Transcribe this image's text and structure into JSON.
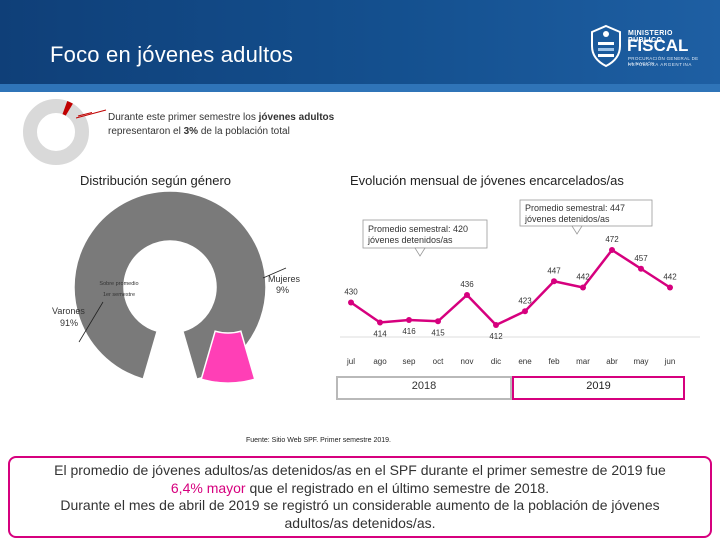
{
  "header": {
    "title": "Foco en jóvenes adultos",
    "logo_line1": "MINISTERIO PÚBLICO",
    "logo_line2": "FISCAL",
    "logo_line3": "PROCURACIÓN GENERAL DE LA NACIÓN",
    "logo_line4": "REPÚBLICA ARGENTINA"
  },
  "intro": {
    "text_before": "Durante este primer semestre los ",
    "bold_1": "jóvenes adultos",
    "text_middle": " representaron el ",
    "bold_2": "3%",
    "text_after": " de la población total",
    "share_percent": 3
  },
  "gender": {
    "title": "Distribución según género",
    "center_label_1": "Sobre promedio",
    "center_label_2": "1er semestre",
    "male_label": "Varones",
    "male_value": "91%",
    "female_label": "Mujeres",
    "female_value": "9%"
  },
  "monthly": {
    "title": "Evolución mensual de jóvenes encarcelados/as",
    "callout_2018_line1": "Promedio semestral: 420",
    "callout_2018_line2": "jóvenes detenidos/as",
    "callout_2019_line1": "Promedio semestral: 447",
    "callout_2019_line2": "jóvenes detenidos/as",
    "year_2018": "2018",
    "year_2019": "2019"
  },
  "chart_data": [
    {
      "type": "pie",
      "categories": [
        "Varones",
        "Mujeres"
      ],
      "values": [
        91,
        9
      ],
      "units": "%"
    },
    {
      "type": "line",
      "categories": [
        "jul",
        "ago",
        "sep",
        "oct",
        "nov",
        "dic",
        "ene",
        "feb",
        "mar",
        "abr",
        "may",
        "jun"
      ],
      "values": [
        430,
        414,
        416,
        415,
        436,
        412,
        423,
        447,
        442,
        472,
        457,
        442
      ],
      "color": "#d6007e"
    }
  ],
  "source": "Fuente: Sitio Web SPF. Primer semestre 2019.",
  "conclusion": {
    "line1": "El promedio de jóvenes adultos/as detenidos/as en el SPF durante el primer semestre de 2019 fue",
    "line2_highlight": "6,4% mayor",
    "line2_rest": " que el registrado en el último semestre de 2018.",
    "line3": "Durante el mes de abril de 2019 se registró un considerable aumento de la población de jóvenes",
    "line4": "adultos/as detenidos/as."
  },
  "colors": {
    "header_blue": "#14508f",
    "accent_pink": "#d6007e",
    "pie_gray": "#7a7a7a",
    "pie_red": "#c00000"
  }
}
